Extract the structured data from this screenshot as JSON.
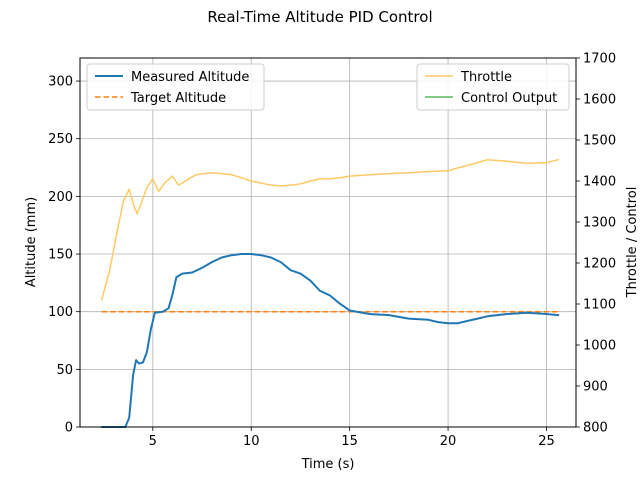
{
  "chart_data": {
    "type": "line",
    "title": "Real-Time Altitude PID Control",
    "xlabel": "Time (s)",
    "ylabel_left": "Altitude (mm)",
    "ylabel_right": "Throttle / Control",
    "xlim": [
      1.3,
      26.5
    ],
    "ylim_left": [
      0,
      320
    ],
    "ylim_right": [
      800,
      1700
    ],
    "x_ticks": [
      5,
      10,
      15,
      20,
      25
    ],
    "y_ticks_left": [
      0,
      50,
      100,
      150,
      200,
      250,
      300
    ],
    "y_ticks_right": [
      800,
      900,
      1000,
      1100,
      1200,
      1300,
      1400,
      1500,
      1600,
      1700
    ],
    "grid": true,
    "legend_left": {
      "placement": "upper-left",
      "entries": [
        "Measured Altitude",
        "Target Altitude"
      ]
    },
    "legend_right": {
      "placement": "upper-right",
      "entries": [
        "Throttle",
        "Control Output"
      ]
    },
    "colors": {
      "measured": "#1f77b4",
      "target": "#ff7f0e",
      "throttle": "#ffc966",
      "control": "#5aba5a"
    },
    "series": [
      {
        "name": "Measured Altitude",
        "axis": "left",
        "style": "solid",
        "x": [
          2.4,
          3.0,
          3.6,
          3.8,
          4.0,
          4.15,
          4.3,
          4.5,
          4.7,
          4.9,
          5.1,
          5.5,
          5.8,
          6.0,
          6.2,
          6.5,
          7.0,
          7.5,
          8.0,
          8.5,
          9.0,
          9.5,
          10.0,
          10.5,
          11.0,
          11.5,
          12.0,
          12.5,
          13.0,
          13.5,
          14.0,
          14.5,
          15.0,
          16.0,
          17.0,
          18.0,
          19.0,
          19.5,
          20.0,
          20.5,
          21.0,
          21.5,
          22.0,
          23.0,
          24.0,
          25.0,
          25.6
        ],
        "y": [
          0,
          0,
          0,
          8,
          45,
          58,
          55,
          56,
          65,
          85,
          99,
          100,
          103,
          115,
          130,
          133,
          134,
          138,
          143,
          147,
          149,
          150,
          150,
          149,
          147,
          143,
          136,
          133,
          127,
          118,
          114,
          107,
          101,
          98,
          97,
          94,
          93,
          91,
          90,
          90,
          92,
          94,
          96,
          98,
          99,
          98,
          97
        ]
      },
      {
        "name": "Target Altitude",
        "axis": "left",
        "style": "dashed",
        "x": [
          2.4,
          25.6
        ],
        "y": [
          100,
          100
        ]
      },
      {
        "name": "Throttle",
        "axis": "right",
        "style": "solid",
        "x": [
          2.4,
          2.8,
          3.2,
          3.5,
          3.8,
          4.0,
          4.2,
          4.4,
          4.7,
          5.0,
          5.3,
          5.6,
          6.0,
          6.3,
          6.5,
          6.8,
          7.2,
          7.6,
          8.0,
          8.5,
          9.0,
          9.5,
          10.0,
          10.5,
          11.0,
          11.5,
          12.0,
          12.5,
          13.0,
          13.5,
          14.0,
          14.5,
          15.0,
          16.0,
          17.0,
          18.0,
          19.0,
          20.0,
          20.5,
          21.0,
          21.5,
          22.0,
          22.5,
          23.0,
          24.0,
          25.0,
          25.6
        ],
        "y": [
          1110,
          1180,
          1280,
          1350,
          1380,
          1345,
          1320,
          1345,
          1385,
          1405,
          1375,
          1395,
          1412,
          1390,
          1395,
          1405,
          1415,
          1418,
          1420,
          1418,
          1415,
          1408,
          1400,
          1395,
          1390,
          1388,
          1390,
          1393,
          1400,
          1405,
          1405,
          1408,
          1412,
          1415,
          1418,
          1420,
          1423,
          1425,
          1432,
          1438,
          1445,
          1452,
          1450,
          1448,
          1443,
          1445,
          1452
        ]
      },
      {
        "name": "Control Output",
        "axis": "right",
        "style": "solid",
        "x": [],
        "y": []
      }
    ]
  }
}
